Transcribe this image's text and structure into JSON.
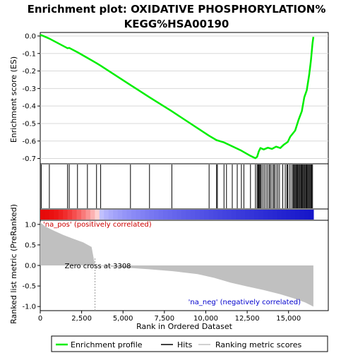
{
  "chart_data": {
    "type": "line",
    "title_line1": "Enrichment plot: OXIDATIVE PHOSPHORYLATION%",
    "title_line2": "KEGG%HSA00190",
    "xlabel": "Rank in Ordered Dataset",
    "ylabel_top": "Enrichment score (ES)",
    "ylabel_bottom": "Ranked list metric (PreRanked)",
    "xlim": [
      0,
      17400
    ],
    "x_ticks": [
      0,
      2500,
      5000,
      7500,
      10000,
      12500,
      15000
    ],
    "x_tick_labels": [
      "0",
      "2,500",
      "5,000",
      "7,500",
      "10,000",
      "12,500",
      "15,000"
    ],
    "es_ylim": [
      -0.73,
      0.02
    ],
    "es_ticks": [
      0.0,
      -0.1,
      -0.2,
      -0.3,
      -0.4,
      -0.5,
      -0.6,
      -0.7
    ],
    "es_tick_labels": [
      "0.0",
      "-0.1",
      "-0.2",
      "-0.3",
      "-0.4",
      "-0.5",
      "-0.6",
      "-0.7"
    ],
    "metric_ylim": [
      -1.1,
      1.1
    ],
    "metric_ticks": [
      1.0,
      0.5,
      0.0,
      -0.5,
      -1.0
    ],
    "metric_tick_labels": [
      "1.0",
      "0.5",
      "0.0",
      "-0.5",
      "-1.0"
    ],
    "total_rank": 16500,
    "zero_cross": 3308,
    "zero_cross_label": "Zero cross at 3308",
    "pos_label": "'na_pos' (positively correlated)",
    "neg_label": "'na_neg' (negatively correlated)",
    "legend": {
      "enrichment": "Enrichment profile",
      "hits": "Hits",
      "ranking": "Ranking metric scores"
    },
    "colors": {
      "es_line": "#00ee00",
      "hits": "#000000",
      "metric_fill": "#c0c0c0",
      "pos_text": "#cc0000",
      "neg_text": "#0000cc"
    },
    "hits": [
      60,
      550,
      1650,
      1750,
      2250,
      2850,
      3400,
      3650,
      5450,
      6600,
      7950,
      10200,
      10650,
      10700,
      11100,
      11250,
      11600,
      11900,
      12150,
      12300,
      12700,
      13000,
      13100,
      13150,
      13200,
      13250,
      13300,
      13350,
      13450,
      13550,
      13650,
      13750,
      13850,
      13900,
      14000,
      14100,
      14150,
      14250,
      14350,
      14450,
      14650,
      14800,
      14900,
      14950,
      15050,
      15150,
      15250,
      15300,
      15350,
      15400,
      15450,
      15500,
      15550,
      15600,
      15650,
      15700,
      15750,
      15800,
      15850,
      15900,
      15950,
      16000,
      16050,
      16100,
      16150,
      16200,
      16250,
      16300,
      16350,
      16400,
      16450
    ],
    "es_points": [
      [
        0,
        0.0
      ],
      [
        60,
        0.005
      ],
      [
        550,
        -0.015
      ],
      [
        1650,
        -0.07
      ],
      [
        1750,
        -0.068
      ],
      [
        2250,
        -0.093
      ],
      [
        2850,
        -0.125
      ],
      [
        3400,
        -0.155
      ],
      [
        3650,
        -0.17
      ],
      [
        5450,
        -0.28
      ],
      [
        6600,
        -0.35
      ],
      [
        7950,
        -0.43
      ],
      [
        10200,
        -0.57
      ],
      [
        10650,
        -0.595
      ],
      [
        11100,
        -0.608
      ],
      [
        11600,
        -0.63
      ],
      [
        12150,
        -0.655
      ],
      [
        12700,
        -0.685
      ],
      [
        13000,
        -0.698
      ],
      [
        13100,
        -0.69
      ],
      [
        13200,
        -0.66
      ],
      [
        13300,
        -0.64
      ],
      [
        13500,
        -0.648
      ],
      [
        13750,
        -0.638
      ],
      [
        14000,
        -0.645
      ],
      [
        14250,
        -0.632
      ],
      [
        14500,
        -0.64
      ],
      [
        14700,
        -0.622
      ],
      [
        14950,
        -0.605
      ],
      [
        15100,
        -0.575
      ],
      [
        15400,
        -0.54
      ],
      [
        15600,
        -0.48
      ],
      [
        15800,
        -0.43
      ],
      [
        15950,
        -0.35
      ],
      [
        16100,
        -0.31
      ],
      [
        16250,
        -0.22
      ],
      [
        16350,
        -0.14
      ],
      [
        16450,
        -0.04
      ],
      [
        16500,
        -0.005
      ]
    ],
    "metric_points": [
      [
        0,
        1.05
      ],
      [
        300,
        0.95
      ],
      [
        800,
        0.85
      ],
      [
        1400,
        0.74
      ],
      [
        2000,
        0.65
      ],
      [
        2600,
        0.56
      ],
      [
        3100,
        0.45
      ],
      [
        3308,
        0.0
      ],
      [
        4000,
        -0.02
      ],
      [
        5000,
        -0.05
      ],
      [
        6500,
        -0.09
      ],
      [
        8000,
        -0.14
      ],
      [
        9500,
        -0.21
      ],
      [
        10500,
        -0.3
      ],
      [
        11500,
        -0.42
      ],
      [
        12500,
        -0.51
      ],
      [
        13500,
        -0.6
      ],
      [
        14500,
        -0.7
      ],
      [
        15300,
        -0.8
      ],
      [
        16000,
        -0.9
      ],
      [
        16500,
        -1.0
      ]
    ]
  }
}
